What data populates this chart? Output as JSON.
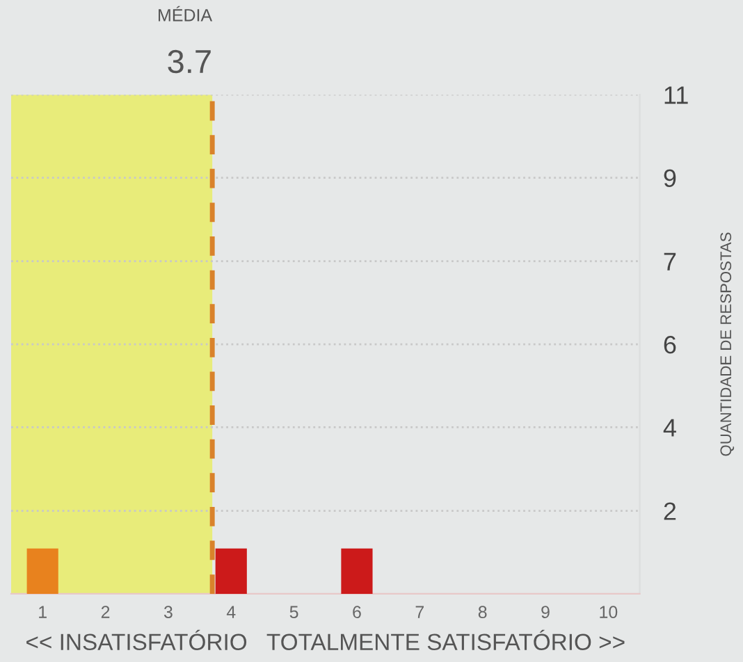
{
  "chart_data": {
    "type": "bar",
    "x": [
      1,
      2,
      3,
      4,
      5,
      6,
      7,
      8,
      9,
      10
    ],
    "values": [
      1,
      0,
      0,
      1,
      0,
      1,
      0,
      0,
      0,
      0
    ],
    "colors": [
      "#e8821e",
      "#cc1a1a",
      "#cc1a1a",
      "#cc1a1a",
      "#cc1a1a",
      "#cc1a1a",
      "#cc1a1a",
      "#cc1a1a",
      "#cc1a1a",
      "#cc1a1a"
    ],
    "xlim": [
      0.5,
      10.5
    ],
    "xticks": [
      1,
      2,
      3,
      4,
      5,
      6,
      7,
      8,
      9,
      10
    ],
    "ylim": [
      0,
      11
    ],
    "yticks": [
      {
        "value": 1.83,
        "label": "2"
      },
      {
        "value": 3.67,
        "label": "4"
      },
      {
        "value": 5.5,
        "label": "6"
      },
      {
        "value": 7.33,
        "label": "7"
      },
      {
        "value": 9.17,
        "label": "9"
      },
      11
    ],
    "xlabel": "<< INSATISFATÓRIO   TOTALMENTE SATISFATÓRIO >>",
    "ylabel": "QUANTIDADE DE RESPOSTAS",
    "annotations": [
      "MÉDIA"
    ],
    "ref_lines": [
      {
        "axis": "x",
        "value": 3.7,
        "label": "3.7",
        "color": "#d9822b",
        "line_style": "dashed"
      }
    ],
    "bands": [
      {
        "axis": "x",
        "from": 0.5,
        "to": 3.7,
        "color": "#e8ec7a"
      }
    ],
    "grid": "y",
    "legend": false
  }
}
